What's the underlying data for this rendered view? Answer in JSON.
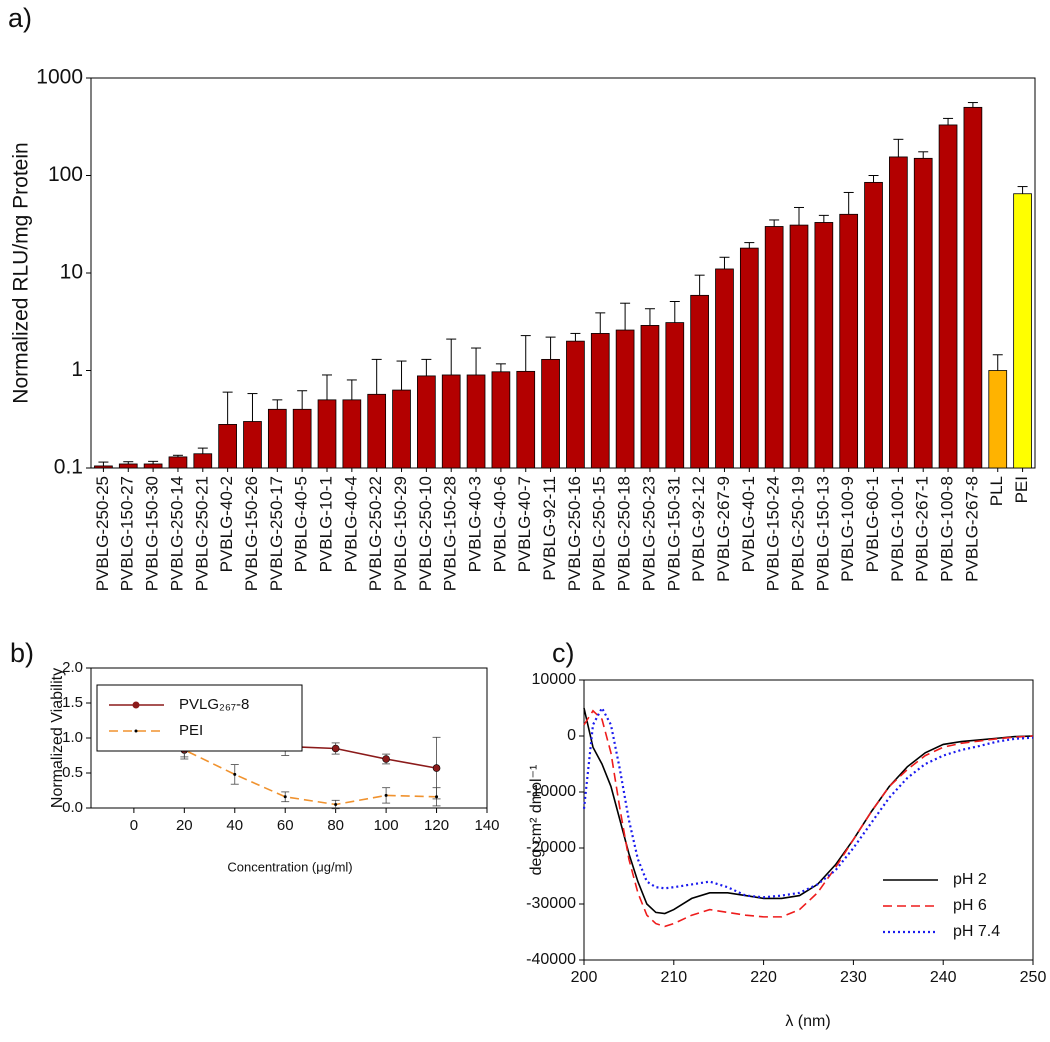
{
  "chart_data": [
    {
      "type": "bar",
      "title": "a)",
      "ylabel": "Normalized RLU/mg Protein",
      "log_y": true,
      "categories": [
        "PVBLG-250-25",
        "PVBLG-150-27",
        "PVBLG-150-30",
        "PVBLG-250-14",
        "PVBLG-250-21",
        "PVBLG-40-2",
        "PVBLG-150-26",
        "PVBLG-250-17",
        "PVBLG-40-5",
        "PVBLG-10-1",
        "PVBLG-40-4",
        "PVBLG-250-22",
        "PVBLG-150-29",
        "PVBLG-250-10",
        "PVBLG-150-28",
        "PVBLG-40-3",
        "PVBLG-40-6",
        "PVBLG-40-7",
        "PVBLG-92-11",
        "PVBLG-250-16",
        "PVBLG-250-15",
        "PVBLG-250-18",
        "PVBLG-250-23",
        "PVBLG-150-31",
        "PVBLG-92-12",
        "PVBLG-267-9",
        "PVBLG-40-1",
        "PVBLG-150-24",
        "PVBLG-250-19",
        "PVBLG-150-13",
        "PVBLG-100-9",
        "PVBLG-60-1",
        "PVBLG-100-1",
        "PVBLG-267-1",
        "PVBLG-100-8",
        "PVBLG-267-8",
        "PLL",
        "PEI"
      ],
      "values": [
        0.105,
        0.11,
        0.11,
        0.13,
        0.14,
        0.28,
        0.3,
        0.4,
        0.4,
        0.5,
        0.5,
        0.57,
        0.63,
        0.88,
        0.9,
        0.9,
        0.97,
        0.98,
        1.3,
        2.0,
        2.4,
        2.6,
        2.9,
        3.1,
        5.9,
        11,
        18,
        30,
        31,
        33,
        40,
        85,
        155,
        150,
        330,
        500,
        1.0,
        65
      ],
      "errors": [
        0.01,
        0.006,
        0.007,
        0.005,
        0.02,
        0.32,
        0.28,
        0.1,
        0.22,
        0.4,
        0.3,
        0.73,
        0.62,
        0.42,
        1.2,
        0.8,
        0.2,
        1.3,
        0.9,
        0.4,
        1.5,
        2.3,
        1.4,
        2.0,
        3.6,
        3.5,
        2.5,
        5,
        16,
        6,
        27,
        15,
        80,
        25,
        55,
        60,
        0.45,
        12
      ],
      "colors": [
        "#b30000",
        "#b30000",
        "#b30000",
        "#b30000",
        "#b30000",
        "#b30000",
        "#b30000",
        "#b30000",
        "#b30000",
        "#b30000",
        "#b30000",
        "#b30000",
        "#b30000",
        "#b30000",
        "#b30000",
        "#b30000",
        "#b30000",
        "#b30000",
        "#b30000",
        "#b30000",
        "#b30000",
        "#b30000",
        "#b30000",
        "#b30000",
        "#b30000",
        "#b30000",
        "#b30000",
        "#b30000",
        "#b30000",
        "#b30000",
        "#b30000",
        "#b30000",
        "#b30000",
        "#b30000",
        "#b30000",
        "#b30000",
        "#ffb300",
        "#ffff00"
      ],
      "ylim": [
        0.1,
        1000
      ],
      "yticks": [
        0.1,
        1,
        10,
        100,
        1000
      ],
      "grid": false
    },
    {
      "type": "line",
      "title": "b)",
      "ylabel": "Normalized Viability",
      "xlabel": "Concentration (μg/ml)",
      "x": [
        0,
        20,
        40,
        60,
        80,
        100,
        120
      ],
      "series": [
        {
          "name": "PVLG₂₆₇-8",
          "color": "#8b1a1a",
          "linestyle": "solid",
          "marker": "circle",
          "values": [
            1.0,
            0.83,
            1.2,
            0.88,
            0.85,
            0.7,
            0.57
          ],
          "errors": [
            0.05,
            0.13,
            0.18,
            0.13,
            0.08,
            0.07,
            0.44
          ]
        },
        {
          "name": "PEI",
          "color": "#f0922e",
          "linestyle": "dashed",
          "marker": "dot",
          "values": [
            1.0,
            0.83,
            0.48,
            0.16,
            0.05,
            0.18,
            0.16
          ],
          "errors": [
            0.04,
            0.1,
            0.14,
            0.07,
            0.06,
            0.11,
            0.13
          ]
        }
      ],
      "xlim": [
        -17,
        140
      ],
      "xticks": [
        0,
        20,
        40,
        60,
        80,
        100,
        120,
        140
      ],
      "ylim": [
        0,
        2
      ],
      "yticks": [
        {
          "value": 0,
          "label": "0.0"
        },
        0.5,
        {
          "value": 1,
          "label": "1.0"
        },
        1.5,
        {
          "value": 2,
          "label": "2.0"
        }
      ],
      "legend": "upper left",
      "legend_frame": true,
      "grid": false
    },
    {
      "type": "line",
      "title": "c)",
      "ylabel": "deg cm² dmol⁻¹",
      "xlabel": "λ (nm)",
      "x": [
        200,
        201,
        202,
        203,
        204,
        205,
        206,
        207,
        208,
        209,
        210,
        212,
        214,
        216,
        218,
        220,
        222,
        224,
        226,
        228,
        230,
        232,
        234,
        236,
        238,
        240,
        242,
        244,
        246,
        248,
        250
      ],
      "series": [
        {
          "name": "pH 2",
          "color": "#000000",
          "linestyle": "solid",
          "values": [
            5000,
            -2000,
            -5000,
            -9000,
            -15000,
            -21000,
            -26000,
            -30000,
            -31500,
            -31700,
            -31000,
            -29000,
            -28000,
            -28000,
            -28500,
            -29000,
            -29000,
            -28500,
            -26500,
            -23000,
            -18500,
            -13500,
            -9000,
            -5500,
            -3000,
            -1500,
            -1000,
            -700,
            -400,
            -100,
            0
          ]
        },
        {
          "name": "pH 6",
          "color": "#ee1c1c",
          "linestyle": "dashed",
          "values": [
            2000,
            4500,
            3000,
            -3000,
            -13000,
            -22000,
            -28000,
            -32000,
            -33500,
            -34000,
            -33500,
            -32000,
            -31000,
            -31500,
            -32000,
            -32300,
            -32300,
            -31000,
            -28000,
            -23500,
            -18500,
            -13500,
            -9000,
            -6000,
            -3500,
            -2000,
            -1300,
            -900,
            -500,
            -200,
            0
          ]
        },
        {
          "name": "pH 7.4",
          "color": "#1a1aee",
          "linestyle": "dotted",
          "values": [
            -13000,
            2000,
            5000,
            2000,
            -6000,
            -15000,
            -22000,
            -26000,
            -27000,
            -27200,
            -27000,
            -26500,
            -26000,
            -27000,
            -28500,
            -28800,
            -28500,
            -28000,
            -26500,
            -24000,
            -20000,
            -15500,
            -11000,
            -7500,
            -5000,
            -3500,
            -2500,
            -1800,
            -1000,
            -500,
            -300
          ]
        }
      ],
      "xlim": [
        200,
        250
      ],
      "xticks": [
        200,
        210,
        220,
        230,
        240,
        250
      ],
      "ylim": [
        -40000,
        10000
      ],
      "yticks": [
        -40000,
        -30000,
        -20000,
        -10000,
        0,
        10000
      ],
      "legend": "lower right",
      "legend_frame": false,
      "grid": false
    }
  ]
}
